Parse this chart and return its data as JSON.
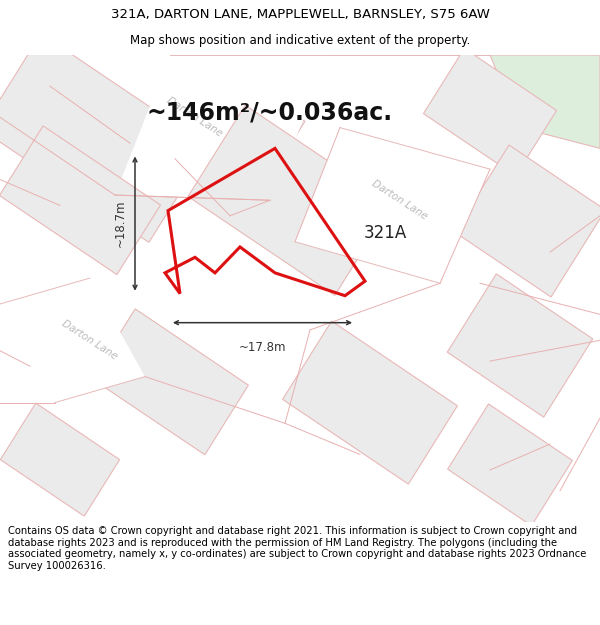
{
  "title_line1": "321A, DARTON LANE, MAPPLEWELL, BARNSLEY, S75 6AW",
  "title_line2": "Map shows position and indicative extent of the property.",
  "footer_text": "Contains OS data © Crown copyright and database right 2021. This information is subject to Crown copyright and database rights 2023 and is reproduced with the permission of HM Land Registry. The polygons (including the associated geometry, namely x, y co-ordinates) are subject to Crown copyright and database rights 2023 Ordnance Survey 100026316.",
  "area_label": "~146m²/~0.036ac.",
  "property_label": "321A",
  "dim_width": "~17.8m",
  "dim_height": "~18.7m",
  "map_bg": "#f5f4f2",
  "parcel_fc_light": "#ebebeb",
  "parcel_fc_white": "#f8f8f8",
  "parcel_ec": "#e8b8b8",
  "green_fc": "#ddeedd",
  "road_label_color": "#bbbbbb",
  "red_line": "#dd1111",
  "dim_color": "#333333",
  "title_fontsize": 9.5,
  "subtitle_fontsize": 8.5,
  "footer_fontsize": 7.2,
  "area_fontsize": 17,
  "label_fontsize": 12,
  "dim_fontsize": 8.5
}
